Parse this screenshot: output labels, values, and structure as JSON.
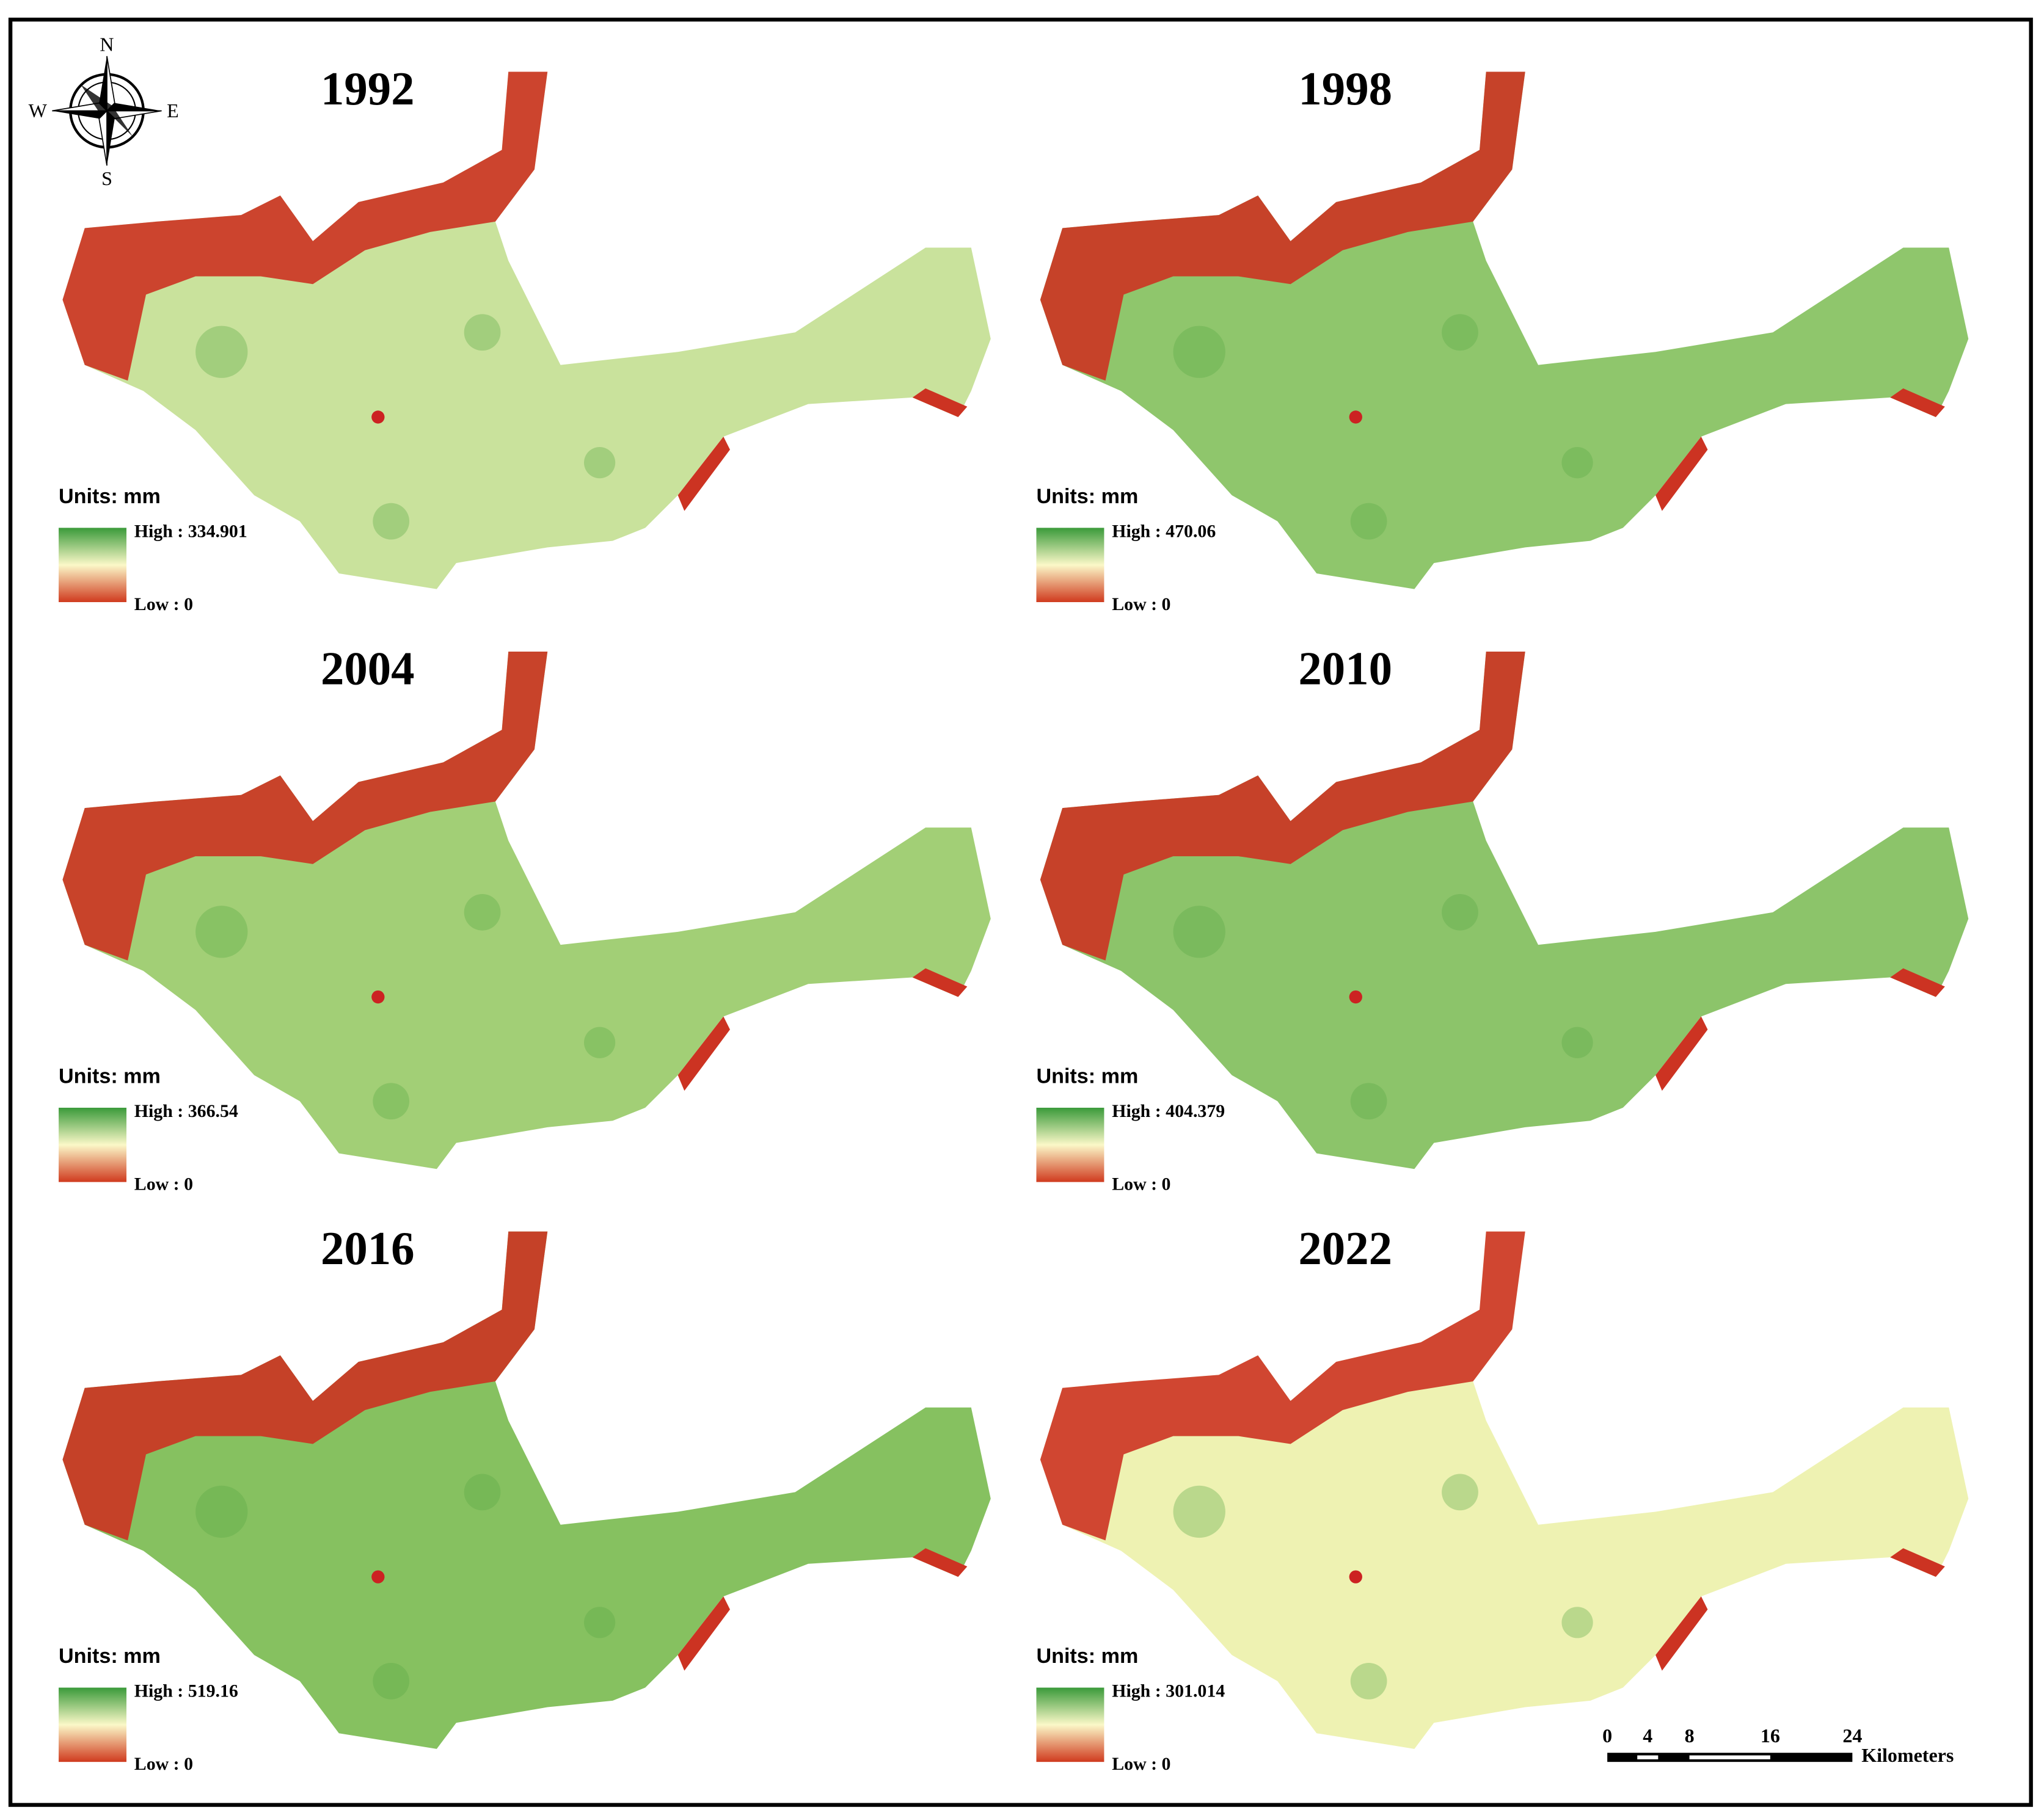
{
  "panels": [
    {
      "title": "1992",
      "units": "Units: mm",
      "high": "High : 334.901",
      "low": "Low : 0",
      "fill": "#c9e29c"
    },
    {
      "title": "1998",
      "units": "Units: mm",
      "high": "High : 470.06",
      "low": "Low : 0",
      "fill": "#8fc66c"
    },
    {
      "title": "2004",
      "units": "Units: mm",
      "high": "High : 366.54",
      "low": "Low : 0",
      "fill": "#a2cf76"
    },
    {
      "title": "2010",
      "units": "Units: mm",
      "high": "High : 404.379",
      "low": "Low : 0",
      "fill": "#8cc46a"
    },
    {
      "title": "2016",
      "units": "Units: mm",
      "high": "High : 519.16",
      "low": "Low : 0",
      "fill": "#86c160"
    },
    {
      "title": "2022",
      "units": "Units: mm",
      "high": "High : 301.014",
      "low": "Low : 0",
      "fill": "#eef2b2"
    }
  ],
  "compass": {
    "north": "N",
    "east": "E",
    "south": "S",
    "west": "W"
  },
  "scale_bar": {
    "ticks": [
      "0",
      "4",
      "8",
      "16",
      "24"
    ],
    "unit": "Kilometers"
  }
}
